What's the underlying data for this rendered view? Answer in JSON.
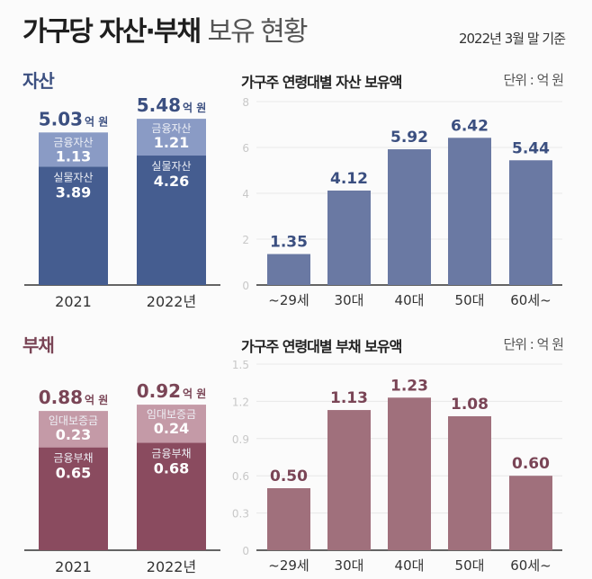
{
  "header": {
    "title_bold": "가구당 자산·부채",
    "title_light": "보유 현황",
    "basis": "2022년 3월 말 기준"
  },
  "colors": {
    "asset_dark": "#455d90",
    "asset_light": "#8a9bc5",
    "asset_bar": "#6a79a3",
    "asset_text": "#3b4f80",
    "debt_dark": "#8a4b5f",
    "debt_light": "#c49aa7",
    "debt_bar": "#a0707c",
    "debt_text": "#7a4556"
  },
  "chart_data": [
    {
      "type": "bar",
      "stacked": true,
      "title": "자산",
      "categories": [
        "2021",
        "2022년"
      ],
      "unit": "억 원",
      "totals": [
        "5.03",
        "5.48"
      ],
      "series": [
        {
          "name": "실물자산",
          "values": [
            3.89,
            4.26
          ]
        },
        {
          "name": "금융자산",
          "values": [
            1.13,
            1.21
          ]
        }
      ]
    },
    {
      "type": "bar",
      "title": "가구주 연령대별 자산 보유액",
      "unit_label": "단위 : 억 원",
      "categories": [
        "~29세",
        "30대",
        "40대",
        "50대",
        "60세~"
      ],
      "values": [
        1.35,
        4.12,
        5.92,
        6.42,
        5.44
      ],
      "ylim": [
        0,
        8
      ],
      "yticks": [
        0,
        2,
        4,
        6,
        8
      ],
      "grid": true
    },
    {
      "type": "bar",
      "stacked": true,
      "title": "부채",
      "categories": [
        "2021",
        "2022년"
      ],
      "unit": "억 원",
      "totals": [
        "0.88",
        "0.92"
      ],
      "series": [
        {
          "name": "금융부채",
          "values": [
            0.65,
            0.68
          ]
        },
        {
          "name": "임대보증금",
          "values": [
            0.23,
            0.24
          ]
        }
      ]
    },
    {
      "type": "bar",
      "title": "가구주 연령대별 부채 보유액",
      "unit_label": "단위 : 억 원",
      "categories": [
        "~29세",
        "30대",
        "40대",
        "50대",
        "60세~"
      ],
      "values": [
        0.5,
        1.13,
        1.23,
        1.08,
        0.6
      ],
      "ylim": [
        0,
        1.5
      ],
      "yticks": [
        0,
        0.3,
        0.6,
        0.9,
        1.2,
        1.5
      ],
      "grid": true
    }
  ]
}
